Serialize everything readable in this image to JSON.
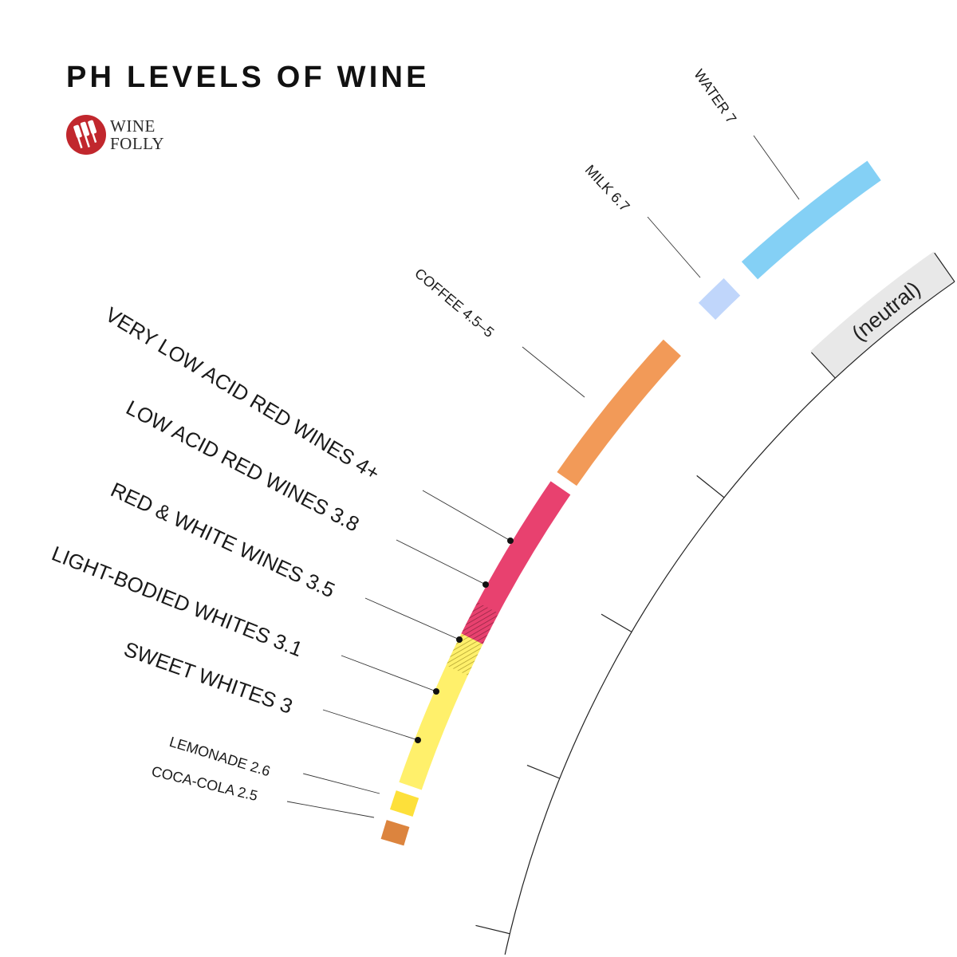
{
  "title": "PH LEVELS OF WINE",
  "logo": {
    "line1": "WINE",
    "line2": "FOLLY",
    "color": "#c1272d"
  },
  "chart_data": {
    "type": "radial-scale",
    "title": "PH LEVELS OF WINE",
    "axis": {
      "ticks_ph": [
        2,
        3,
        4,
        5,
        6,
        7
      ],
      "neutral_label": "(neutral)"
    },
    "items": [
      {
        "label": "WATER 7",
        "ph": [
          7,
          7
        ],
        "color": "#84d0f5"
      },
      {
        "label": "MILK 6.7",
        "ph": [
          6.7,
          6.7
        ],
        "color": "#c0d6fb"
      },
      {
        "label": "COFFEE 4.5–5",
        "ph": [
          4.5,
          5
        ],
        "color": "#f29a58"
      },
      {
        "label": "VERY LOW ACID RED WINES 4+",
        "ph": [
          4,
          4
        ],
        "color": "#e8416f"
      },
      {
        "label": "LOW ACID RED WINES 3.8",
        "ph": [
          3.8,
          3.8
        ],
        "color": "#e8416f"
      },
      {
        "label": "RED & WHITE WINES 3.5",
        "ph": [
          3.5,
          3.5
        ],
        "color": "#e8416f"
      },
      {
        "label": "LIGHT-BODIED WHITES 3.1",
        "ph": [
          3.1,
          3.1
        ],
        "color": "#fff06b"
      },
      {
        "label": "SWEET WHITES 3",
        "ph": [
          3,
          3
        ],
        "color": "#fff06b"
      },
      {
        "label": "LEMONADE 2.6",
        "ph": [
          2.6,
          2.6
        ],
        "color": "#fde03a"
      },
      {
        "label": "COCA-COLA 2.5",
        "ph": [
          2.5,
          2.5
        ],
        "color": "#dc843e"
      }
    ],
    "colors": {
      "red_wine": "#e8416f",
      "white_wine": "#fff06b",
      "neutral_band": "#e8e8e8",
      "axis": "#222222"
    }
  }
}
